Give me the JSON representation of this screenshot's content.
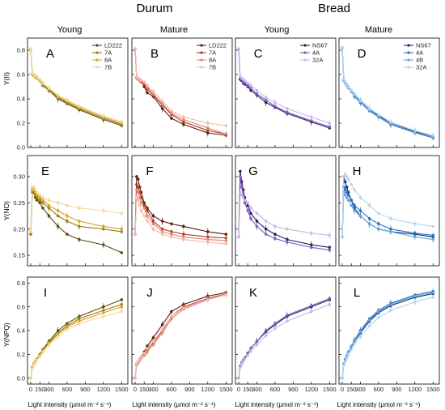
{
  "groups": {
    "durum": "Durum",
    "bread": "Bread"
  },
  "stages": {
    "young": "Young",
    "mature": "Mature"
  },
  "y_labels": [
    "Y(II)",
    "Y(NO)",
    "Y(NPQ)"
  ],
  "x_label": "Light intensity (μmol m⁻² s⁻¹)",
  "x_ticks": [
    0,
    150,
    300,
    600,
    900,
    1200,
    1500
  ],
  "y_ticks": [
    [
      "0.0",
      "0.2",
      "0.4",
      "0.6",
      "0.8"
    ],
    [
      "0.15",
      "0.20",
      "0.25",
      "0.30"
    ],
    [
      "0.0",
      "0.2",
      "0.4",
      "0.6",
      "0.8"
    ]
  ],
  "chart_data": {
    "type": "line",
    "x": [
      0,
      25,
      50,
      75,
      100,
      150,
      200,
      300,
      450,
      600,
      800,
      1200,
      1500
    ],
    "xlim": [
      0,
      1550
    ],
    "rows": [
      {
        "ylabel": "Y(II)",
        "ylim": [
          0,
          0.9
        ],
        "ticks": [
          0,
          0.2,
          0.4,
          0.6,
          0.8
        ]
      },
      {
        "ylabel": "Y(NO)",
        "ylim": [
          0.13,
          0.34
        ],
        "ticks": [
          0.15,
          0.2,
          0.25,
          0.3
        ]
      },
      {
        "ylabel": "Y(NPQ)",
        "ylim": [
          -0.05,
          0.85
        ],
        "ticks": [
          0,
          0.2,
          0.4,
          0.6,
          0.8
        ]
      }
    ],
    "panels": [
      {
        "letter": "A",
        "legend": true,
        "series": [
          {
            "name": "LD222",
            "color": "#5b4a12",
            "values": [
              0.81,
              0.61,
              0.6,
              0.58,
              0.57,
              0.55,
              0.51,
              0.47,
              0.4,
              0.36,
              0.31,
              0.23,
              0.18
            ]
          },
          {
            "name": "7A",
            "color": "#a17a10",
            "values": [
              0.81,
              0.61,
              0.6,
              0.59,
              0.58,
              0.55,
              0.52,
              0.48,
              0.41,
              0.37,
              0.32,
              0.24,
              0.19
            ]
          },
          {
            "name": "8A",
            "color": "#d4a520",
            "values": [
              0.81,
              0.6,
              0.59,
              0.58,
              0.57,
              0.55,
              0.52,
              0.48,
              0.42,
              0.38,
              0.33,
              0.25,
              0.2
            ]
          },
          {
            "name": "7B",
            "color": "#f2d898",
            "values": [
              0.81,
              0.61,
              0.6,
              0.59,
              0.58,
              0.56,
              0.53,
              0.49,
              0.43,
              0.39,
              0.34,
              0.26,
              0.21
            ]
          }
        ]
      },
      {
        "letter": "B",
        "legend": true,
        "series": [
          {
            "name": "LD222",
            "color": "#5c1d10",
            "values": [
              0.81,
              0.58,
              0.57,
              0.56,
              0.55,
              0.5,
              0.45,
              0.42,
              0.32,
              0.24,
              0.19,
              0.12,
              0.1
            ]
          },
          {
            "name": "7A",
            "color": "#b23a26",
            "values": [
              0.81,
              0.57,
              0.56,
              0.55,
              0.54,
              0.52,
              0.48,
              0.43,
              0.35,
              0.27,
              0.21,
              0.14,
              0.11
            ]
          },
          {
            "name": "8A",
            "color": "#e0836c",
            "values": [
              0.81,
              0.57,
              0.56,
              0.55,
              0.55,
              0.53,
              0.5,
              0.44,
              0.36,
              0.28,
              0.23,
              0.16,
              0.11
            ]
          },
          {
            "name": "7B",
            "color": "#f3b9ab",
            "values": [
              0.81,
              0.58,
              0.57,
              0.56,
              0.55,
              0.54,
              0.51,
              0.46,
              0.38,
              0.3,
              0.25,
              0.2,
              0.18
            ]
          }
        ]
      },
      {
        "letter": "C",
        "legend": true,
        "series": [
          {
            "name": "NS67",
            "color": "#2b1a55",
            "values": [
              0.81,
              0.56,
              0.55,
              0.53,
              0.52,
              0.5,
              0.47,
              0.43,
              0.37,
              0.33,
              0.28,
              0.21,
              0.16
            ]
          },
          {
            "name": "4A",
            "color": "#7e5bc0",
            "values": [
              0.81,
              0.57,
              0.56,
              0.54,
              0.53,
              0.51,
              0.49,
              0.44,
              0.39,
              0.34,
              0.29,
              0.22,
              0.17
            ]
          },
          {
            "name": "32A",
            "color": "#c9b8e6",
            "values": [
              0.81,
              0.58,
              0.57,
              0.56,
              0.55,
              0.53,
              0.51,
              0.47,
              0.41,
              0.37,
              0.32,
              0.25,
              0.2
            ]
          }
        ]
      },
      {
        "letter": "D",
        "legend": true,
        "series": [
          {
            "name": "NS67",
            "color": "#0e2f6b",
            "values": [
              0.82,
              0.56,
              0.54,
              0.52,
              0.5,
              0.47,
              0.44,
              0.39,
              0.32,
              0.26,
              0.2,
              0.13,
              0.09
            ]
          },
          {
            "name": "4A",
            "color": "#2a6fc2",
            "values": [
              0.82,
              0.55,
              0.53,
              0.51,
              0.49,
              0.46,
              0.42,
              0.37,
              0.3,
              0.25,
              0.19,
              0.12,
              0.08
            ]
          },
          {
            "name": "4B",
            "color": "#6aa6de",
            "values": [
              0.82,
              0.55,
              0.53,
              0.51,
              0.49,
              0.46,
              0.43,
              0.38,
              0.31,
              0.25,
              0.2,
              0.12,
              0.09
            ]
          },
          {
            "name": "32A",
            "color": "#b5d3ef",
            "values": [
              0.82,
              0.56,
              0.54,
              0.52,
              0.5,
              0.47,
              0.44,
              0.39,
              0.32,
              0.27,
              0.21,
              0.14,
              0.1
            ]
          }
        ]
      },
      {
        "letter": "E",
        "legend": false,
        "series": [
          {
            "name": "LD222",
            "color": "#5b4a12",
            "values": [
              0.19,
              0.27,
              0.27,
              0.26,
              0.255,
              0.25,
              0.24,
              0.225,
              0.205,
              0.19,
              0.18,
              0.17,
              0.155
            ]
          },
          {
            "name": "7A",
            "color": "#a17a10",
            "values": [
              0.19,
              0.275,
              0.275,
              0.265,
              0.26,
              0.255,
              0.25,
              0.24,
              0.225,
              0.215,
              0.205,
              0.2,
              0.195
            ]
          },
          {
            "name": "8A",
            "color": "#d4a520",
            "values": [
              0.195,
              0.28,
              0.275,
              0.27,
              0.265,
              0.26,
              0.255,
              0.245,
              0.235,
              0.225,
              0.215,
              0.205,
              0.2
            ]
          },
          {
            "name": "7B",
            "color": "#f2d898",
            "values": [
              0.195,
              0.28,
              0.28,
              0.275,
              0.27,
              0.265,
              0.26,
              0.255,
              0.25,
              0.245,
              0.24,
              0.235,
              0.23
            ]
          }
        ]
      },
      {
        "letter": "F",
        "legend": false,
        "series": [
          {
            "name": "LD222",
            "color": "#5c1d10",
            "values": [
              0.19,
              0.3,
              0.295,
              0.28,
              0.27,
              0.25,
              0.24,
              0.225,
              0.215,
              0.21,
              0.205,
              0.195,
              0.19
            ]
          },
          {
            "name": "7A",
            "color": "#b23a26",
            "values": [
              0.19,
              0.285,
              0.28,
              0.27,
              0.26,
              0.245,
              0.235,
              0.215,
              0.2,
              0.195,
              0.19,
              0.185,
              0.183
            ]
          },
          {
            "name": "8A",
            "color": "#e0836c",
            "values": [
              0.19,
              0.275,
              0.27,
              0.26,
              0.25,
              0.24,
              0.225,
              0.21,
              0.195,
              0.19,
              0.185,
              0.18,
              0.178
            ]
          },
          {
            "name": "7B",
            "color": "#f3b9ab",
            "values": [
              0.19,
              0.26,
              0.255,
              0.245,
              0.235,
              0.225,
              0.215,
              0.2,
              0.19,
              0.185,
              0.18,
              0.175,
              0.172
            ]
          }
        ]
      },
      {
        "letter": "G",
        "legend": false,
        "series": [
          {
            "name": "NS67",
            "color": "#2b1a55",
            "values": [
              0.185,
              0.31,
              0.29,
              0.275,
              0.26,
              0.245,
              0.23,
              0.215,
              0.2,
              0.19,
              0.18,
              0.17,
              0.165
            ]
          },
          {
            "name": "4A",
            "color": "#7e5bc0",
            "values": [
              0.185,
              0.3,
              0.28,
              0.265,
              0.25,
              0.235,
              0.22,
              0.205,
              0.19,
              0.182,
              0.175,
              0.165,
              0.16
            ]
          },
          {
            "name": "32A",
            "color": "#c9b8e6",
            "values": [
              0.185,
              0.27,
              0.265,
              0.26,
              0.255,
              0.25,
              0.24,
              0.23,
              0.215,
              0.205,
              0.2,
              0.192,
              0.188
            ]
          }
        ]
      },
      {
        "letter": "H",
        "legend": false,
        "series": [
          {
            "name": "NS67",
            "color": "#0e2f6b",
            "values": [
              0.185,
              0.3,
              0.29,
              0.28,
              0.27,
              0.255,
              0.24,
              0.225,
              0.21,
              0.2,
              0.195,
              0.19,
              0.185
            ]
          },
          {
            "name": "4A",
            "color": "#2a6fc2",
            "values": [
              0.185,
              0.28,
              0.275,
              0.27,
              0.265,
              0.255,
              0.245,
              0.235,
              0.22,
              0.21,
              0.2,
              0.192,
              0.188
            ]
          },
          {
            "name": "4B",
            "color": "#6aa6de",
            "values": [
              0.185,
              0.27,
              0.265,
              0.26,
              0.255,
              0.245,
              0.235,
              0.225,
              0.21,
              0.2,
              0.195,
              0.185,
              0.18
            ]
          },
          {
            "name": "32A",
            "color": "#b5d3ef",
            "values": [
              0.185,
              0.3,
              0.305,
              0.3,
              0.295,
              0.285,
              0.275,
              0.26,
              0.245,
              0.23,
              0.22,
              0.21,
              0.205
            ]
          }
        ]
      },
      {
        "letter": "I",
        "legend": false,
        "series": [
          {
            "name": "LD222",
            "color": "#5b4a12",
            "values": [
              0,
              0.09,
              0.12,
              0.14,
              0.16,
              0.2,
              0.24,
              0.31,
              0.4,
              0.46,
              0.52,
              0.6,
              0.66
            ]
          },
          {
            "name": "7A",
            "color": "#a17a10",
            "values": [
              0,
              0.09,
              0.12,
              0.14,
              0.16,
              0.2,
              0.23,
              0.3,
              0.38,
              0.44,
              0.5,
              0.57,
              0.62
            ]
          },
          {
            "name": "8A",
            "color": "#d4a520",
            "values": [
              0,
              0.09,
              0.12,
              0.14,
              0.16,
              0.19,
              0.23,
              0.29,
              0.37,
              0.43,
              0.48,
              0.55,
              0.6
            ]
          },
          {
            "name": "7B",
            "color": "#f2d898",
            "values": [
              0,
              0.08,
              0.11,
              0.13,
              0.15,
              0.18,
              0.22,
              0.28,
              0.35,
              0.41,
              0.46,
              0.52,
              0.56
            ]
          }
        ]
      },
      {
        "letter": "J",
        "legend": false,
        "series": [
          {
            "name": "LD222",
            "color": "#5c1d10",
            "values": [
              0,
              0.12,
              0.14,
              0.16,
              0.18,
              0.22,
              0.27,
              0.34,
              0.45,
              0.56,
              0.62,
              0.69,
              0.72
            ]
          },
          {
            "name": "7A",
            "color": "#b23a26",
            "values": [
              0,
              0.11,
              0.13,
              0.15,
              0.17,
              0.2,
              0.24,
              0.3,
              0.4,
              0.52,
              0.6,
              0.67,
              0.71
            ]
          },
          {
            "name": "8A",
            "color": "#e0836c",
            "values": [
              0,
              0.11,
              0.13,
              0.15,
              0.17,
              0.19,
              0.22,
              0.28,
              0.38,
              0.5,
              0.58,
              0.66,
              0.71
            ]
          },
          {
            "name": "7B",
            "color": "#f3b9ab",
            "values": [
              0,
              0.12,
              0.14,
              0.16,
              0.18,
              0.21,
              0.25,
              0.31,
              0.41,
              0.52,
              0.59,
              0.66,
              0.7
            ]
          }
        ]
      },
      {
        "letter": "K",
        "legend": false,
        "series": [
          {
            "name": "NS67",
            "color": "#2b1a55",
            "values": [
              0,
              0.1,
              0.13,
              0.15,
              0.17,
              0.21,
              0.25,
              0.31,
              0.39,
              0.45,
              0.52,
              0.6,
              0.66
            ]
          },
          {
            "name": "4A",
            "color": "#7e5bc0",
            "values": [
              0,
              0.1,
              0.13,
              0.15,
              0.17,
              0.21,
              0.25,
              0.31,
              0.4,
              0.46,
              0.53,
              0.61,
              0.67
            ]
          },
          {
            "name": "32A",
            "color": "#c9b8e6",
            "values": [
              0,
              0.09,
              0.12,
              0.14,
              0.16,
              0.19,
              0.23,
              0.28,
              0.36,
              0.42,
              0.48,
              0.56,
              0.62
            ]
          }
        ]
      },
      {
        "letter": "L",
        "legend": false,
        "series": [
          {
            "name": "NS67",
            "color": "#0e2f6b",
            "values": [
              0,
              0.12,
              0.15,
              0.18,
              0.21,
              0.26,
              0.31,
              0.38,
              0.48,
              0.55,
              0.61,
              0.68,
              0.71
            ]
          },
          {
            "name": "4A",
            "color": "#2a6fc2",
            "values": [
              0,
              0.12,
              0.16,
              0.19,
              0.22,
              0.27,
              0.32,
              0.4,
              0.5,
              0.57,
              0.63,
              0.7,
              0.73
            ]
          },
          {
            "name": "4B",
            "color": "#6aa6de",
            "values": [
              0,
              0.12,
              0.16,
              0.19,
              0.22,
              0.27,
              0.32,
              0.39,
              0.49,
              0.56,
              0.62,
              0.69,
              0.72
            ]
          },
          {
            "name": "32A",
            "color": "#b5d3ef",
            "values": [
              0,
              0.11,
              0.14,
              0.17,
              0.2,
              0.24,
              0.29,
              0.35,
              0.44,
              0.51,
              0.57,
              0.64,
              0.68
            ]
          }
        ]
      }
    ]
  }
}
